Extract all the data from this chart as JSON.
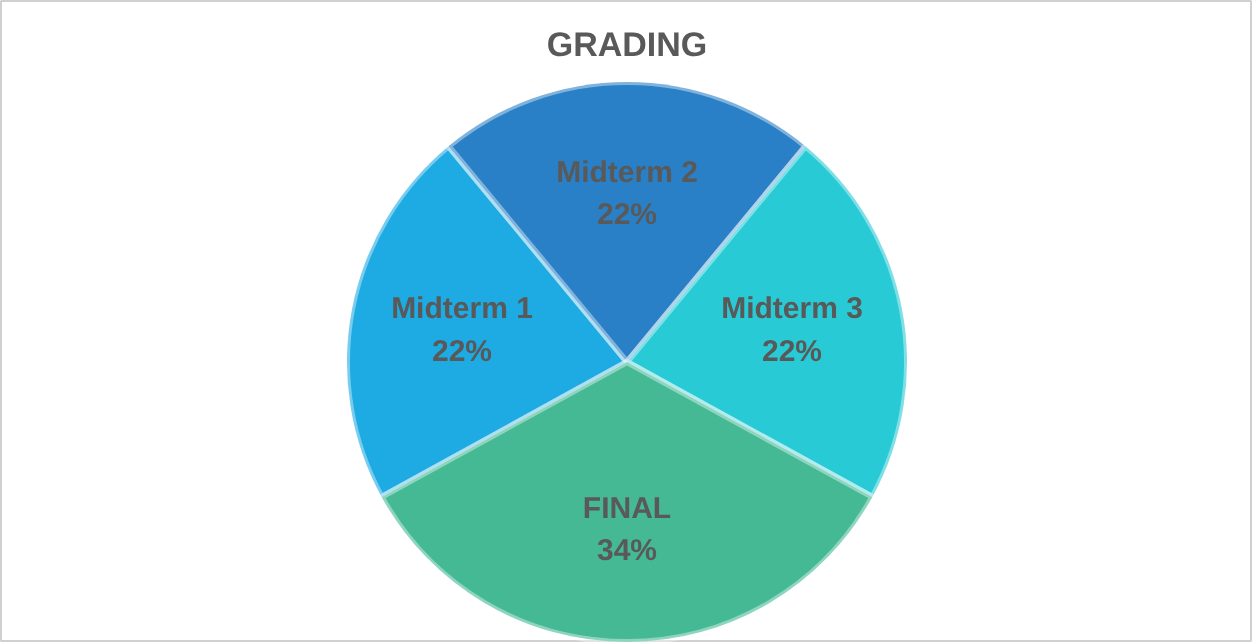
{
  "chart_data": {
    "type": "pie",
    "title": "GRADING",
    "categories": [
      "Midterm 1",
      "Midterm 2",
      "Midterm 3",
      "FINAL"
    ],
    "values": [
      22,
      22,
      22,
      34
    ],
    "colors": [
      "#1eaae2",
      "#2a80c6",
      "#28cbd5",
      "#44b994"
    ],
    "value_labels": [
      "22%",
      "22%",
      "22%",
      "34%"
    ]
  }
}
